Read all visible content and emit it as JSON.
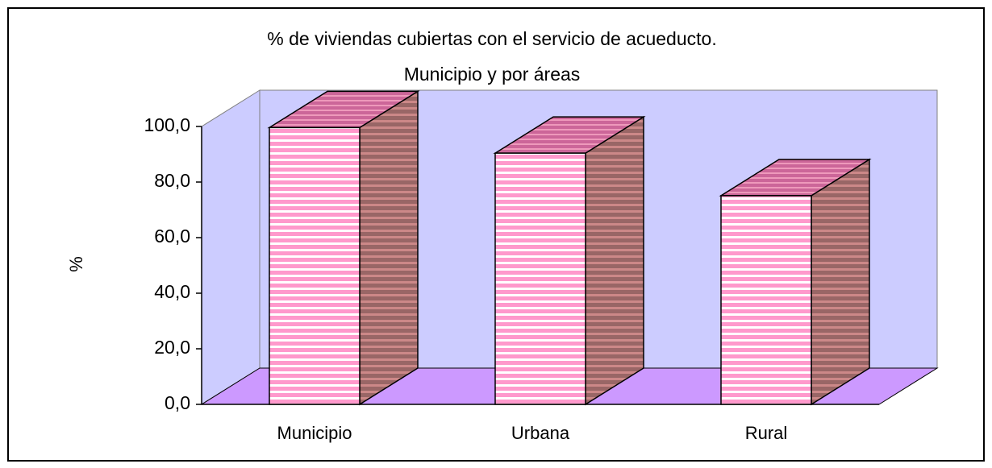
{
  "chart_data": {
    "type": "bar3d",
    "title": [
      "% de viviendas cubiertas con el servicio de acueducto.",
      "Municipio y por áreas"
    ],
    "y_label": "%",
    "categories": [
      "Municipio",
      "Urbana",
      "Rural"
    ],
    "values": [
      99.6,
      90.4,
      75.1
    ],
    "color": "#ff99cc",
    "side_color": "#996666",
    "top_color": "#cc6699",
    "wall_color": "#ccccff",
    "floor_color": "#cc99ff",
    "ylim": [
      0,
      100
    ],
    "yticks": [
      {
        "value": 0,
        "label": "0,0"
      },
      {
        "value": 20,
        "label": "20,0"
      },
      {
        "value": 40,
        "label": "40,0"
      },
      {
        "value": 60,
        "label": "60,0"
      },
      {
        "value": 80,
        "label": "80,0"
      },
      {
        "value": 100,
        "label": "100,0"
      }
    ]
  }
}
